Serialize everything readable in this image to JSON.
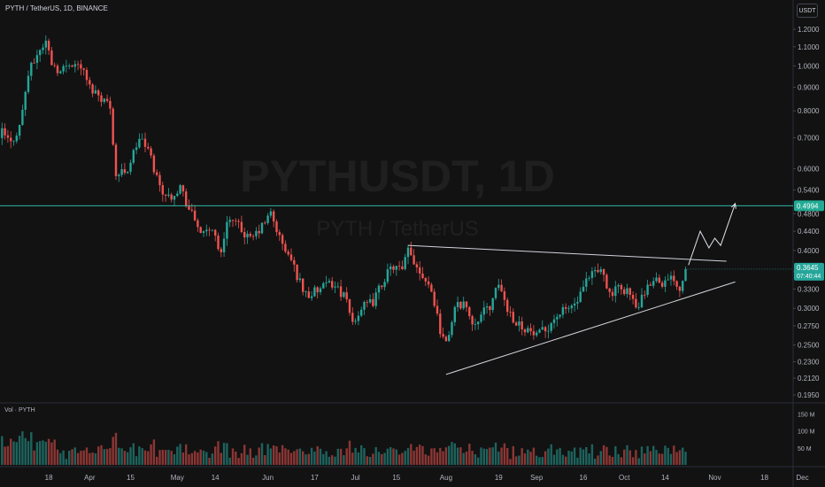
{
  "header": {
    "symbol_title": "PYTH / TetherUS, 1D, BINANCE",
    "currency_button": "USDT"
  },
  "watermark": {
    "main": "PYTHUSDT, 1D",
    "sub": "PYTH / TetherUS"
  },
  "volume": {
    "label": "Vol · PYTH"
  },
  "colors": {
    "up": "#26a69a",
    "down": "#ef5350",
    "hline": "#2fb7a6",
    "background": "#121212",
    "axis_text": "#b2b5be"
  },
  "chart_data": {
    "type": "candlestick",
    "scale": "log",
    "price_ticks": [
      0.195,
      0.212,
      0.23,
      0.25,
      0.275,
      0.3,
      0.33,
      0.36,
      0.4,
      0.44,
      0.48,
      0.54,
      0.6,
      0.7,
      0.8,
      0.9,
      1.0,
      1.1,
      1.2
    ],
    "price_tick_labels": [
      "0.1950",
      "0.2120",
      "0.2300",
      "0.2500",
      "0.2750",
      "0.3000",
      "0.3300",
      "0.3600",
      "0.4000",
      "0.4400",
      "0.4800",
      "0.5400",
      "0.6000",
      "0.7000",
      "0.8000",
      "0.9000",
      "1.0000",
      "1.1000",
      "1.2000"
    ],
    "ylim": [
      0.19,
      1.26
    ],
    "x_tick_labels": [
      "18",
      "Apr",
      "15",
      "May",
      "14",
      "Jun",
      "17",
      "Jul",
      "15",
      "Aug",
      "19",
      "Sep",
      "16",
      "Oct",
      "14",
      "Nov",
      "18",
      "Dec"
    ],
    "x_tick_days": [
      17,
      31,
      45,
      61,
      74,
      92,
      108,
      122,
      136,
      153,
      171,
      184,
      200,
      214,
      228,
      245,
      262,
      275
    ],
    "last_day": 235,
    "total_days": 282,
    "candles_days_from_mar1": [
      1,
      235
    ],
    "path_anchors": [
      {
        "day": 1,
        "price": 0.72
      },
      {
        "day": 4,
        "price": 0.68
      },
      {
        "day": 7,
        "price": 0.74
      },
      {
        "day": 10,
        "price": 0.96
      },
      {
        "day": 13,
        "price": 1.06
      },
      {
        "day": 16,
        "price": 1.13
      },
      {
        "day": 18,
        "price": 1.02
      },
      {
        "day": 21,
        "price": 0.97
      },
      {
        "day": 24,
        "price": 1.02
      },
      {
        "day": 28,
        "price": 1.0
      },
      {
        "day": 31,
        "price": 0.9
      },
      {
        "day": 34,
        "price": 0.87
      },
      {
        "day": 38,
        "price": 0.82
      },
      {
        "day": 40,
        "price": 0.58
      },
      {
        "day": 44,
        "price": 0.6
      },
      {
        "day": 48,
        "price": 0.7
      },
      {
        "day": 51,
        "price": 0.66
      },
      {
        "day": 55,
        "price": 0.55
      },
      {
        "day": 58,
        "price": 0.52
      },
      {
        "day": 62,
        "price": 0.55
      },
      {
        "day": 65,
        "price": 0.49
      },
      {
        "day": 70,
        "price": 0.43
      },
      {
        "day": 73,
        "price": 0.45
      },
      {
        "day": 76,
        "price": 0.39
      },
      {
        "day": 78,
        "price": 0.47
      },
      {
        "day": 82,
        "price": 0.45
      },
      {
        "day": 86,
        "price": 0.42
      },
      {
        "day": 90,
        "price": 0.45
      },
      {
        "day": 93,
        "price": 0.48
      },
      {
        "day": 97,
        "price": 0.41
      },
      {
        "day": 100,
        "price": 0.38
      },
      {
        "day": 104,
        "price": 0.33
      },
      {
        "day": 106,
        "price": 0.32
      },
      {
        "day": 110,
        "price": 0.33
      },
      {
        "day": 114,
        "price": 0.34
      },
      {
        "day": 118,
        "price": 0.32
      },
      {
        "day": 121,
        "price": 0.28
      },
      {
        "day": 124,
        "price": 0.3
      },
      {
        "day": 128,
        "price": 0.31
      },
      {
        "day": 132,
        "price": 0.35
      },
      {
        "day": 135,
        "price": 0.37
      },
      {
        "day": 138,
        "price": 0.36
      },
      {
        "day": 140,
        "price": 0.4
      },
      {
        "day": 143,
        "price": 0.37
      },
      {
        "day": 147,
        "price": 0.34
      },
      {
        "day": 149,
        "price": 0.31
      },
      {
        "day": 151,
        "price": 0.27
      },
      {
        "day": 153,
        "price": 0.25
      },
      {
        "day": 156,
        "price": 0.3
      },
      {
        "day": 159,
        "price": 0.31
      },
      {
        "day": 162,
        "price": 0.28
      },
      {
        "day": 165,
        "price": 0.29
      },
      {
        "day": 169,
        "price": 0.31
      },
      {
        "day": 171,
        "price": 0.34
      },
      {
        "day": 174,
        "price": 0.3
      },
      {
        "day": 177,
        "price": 0.28
      },
      {
        "day": 181,
        "price": 0.27
      },
      {
        "day": 184,
        "price": 0.26
      },
      {
        "day": 187,
        "price": 0.27
      },
      {
        "day": 191,
        "price": 0.29
      },
      {
        "day": 195,
        "price": 0.3
      },
      {
        "day": 198,
        "price": 0.31
      },
      {
        "day": 201,
        "price": 0.34
      },
      {
        "day": 204,
        "price": 0.36
      },
      {
        "day": 207,
        "price": 0.36
      },
      {
        "day": 209,
        "price": 0.32
      },
      {
        "day": 212,
        "price": 0.33
      },
      {
        "day": 215,
        "price": 0.33
      },
      {
        "day": 218,
        "price": 0.3
      },
      {
        "day": 221,
        "price": 0.32
      },
      {
        "day": 224,
        "price": 0.35
      },
      {
        "day": 228,
        "price": 0.34
      },
      {
        "day": 231,
        "price": 0.35
      },
      {
        "day": 233,
        "price": 0.33
      },
      {
        "day": 235,
        "price": 0.3645
      }
    ],
    "horizontal_line": {
      "price": 0.4994,
      "label": "0.4994"
    },
    "last_price": {
      "price": 0.3645,
      "label": "0.3645",
      "countdown": "07:40:44"
    },
    "trendlines": [
      {
        "role": "upper",
        "from": {
          "day": 140,
          "price": 0.41
        },
        "to": {
          "day": 249,
          "price": 0.379
        }
      },
      {
        "role": "lower",
        "from": {
          "day": 153,
          "price": 0.216
        },
        "to": {
          "day": 252,
          "price": 0.342
        }
      }
    ],
    "projection": [
      {
        "day": 236,
        "price": 0.372
      },
      {
        "day": 240,
        "price": 0.44
      },
      {
        "day": 243,
        "price": 0.405
      },
      {
        "day": 245,
        "price": 0.425
      },
      {
        "day": 247,
        "price": 0.41
      },
      {
        "day": 252,
        "price": 0.505
      }
    ],
    "volume_ticks": [
      {
        "value": 50,
        "label": "50 M"
      },
      {
        "value": 100,
        "label": "100 M"
      },
      {
        "value": 150,
        "label": "150 M"
      }
    ],
    "volume_max": 175
  }
}
